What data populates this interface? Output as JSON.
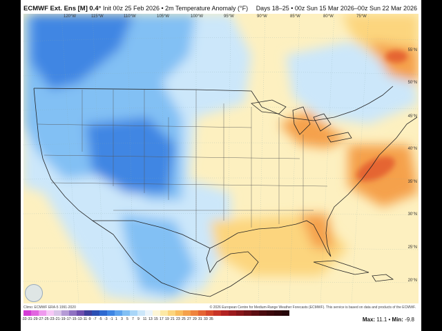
{
  "header": {
    "model": "ECMWF Ext. Ens [M]",
    "resolution": "0.4°",
    "init": "Init 00z 25 Feb 2026",
    "field": "2m Temperature Anomaly (°F)",
    "valid": "Days 18–25 • 00z Sun 15 Mar 2026–00z Sun 22 Mar 2026"
  },
  "map": {
    "region": "Continental United States",
    "lon_labels": [
      "120°W",
      "115°W",
      "110°W",
      "105°W",
      "100°W",
      "95°W",
      "90°W",
      "85°W",
      "80°W",
      "75°W"
    ],
    "lat_labels": [
      "55°N",
      "50°N",
      "45°N",
      "40°N",
      "35°N",
      "30°N",
      "25°N",
      "20°N"
    ]
  },
  "footer": {
    "climo": "Climo: ECMWF ERA-5 1991-2020",
    "copyright": "© 2026 European Centre for Medium-Range Weather Forecasts (ECMWF). This service is based on data and products of the ECMWF.",
    "max_label": "Max:",
    "max_value": "11.1",
    "min_label": "Min:",
    "min_value": "-9.8"
  },
  "colorbar": {
    "ticks": [
      "-33",
      "-31",
      "-29",
      "-27",
      "-25",
      "-23",
      "-21",
      "-19",
      "-17",
      "-15",
      "-13",
      "-11",
      "-9",
      "-7",
      "-5",
      "-3",
      "-1",
      "1",
      "3",
      "5",
      "7",
      "9",
      "11",
      "13",
      "15",
      "17",
      "19",
      "21",
      "23",
      "25",
      "27",
      "29",
      "31",
      "33",
      "35"
    ],
    "colors": [
      "#d43bd6",
      "#e266e0",
      "#ef99ee",
      "#f6c8f6",
      "#d9c4e8",
      "#b59bd6",
      "#8f72c2",
      "#6f4fae",
      "#3f3f9c",
      "#2b4fb3",
      "#2e6ad0",
      "#3f86e3",
      "#5ea4ee",
      "#82c0f4",
      "#a9d6f8",
      "#cce7fa",
      "#ebf4fb",
      "#fdf6d6",
      "#fde9a6",
      "#fcd57e",
      "#f9bd5e",
      "#f5a14b",
      "#ef843e",
      "#e56533",
      "#d84a2b",
      "#c73426",
      "#b22222",
      "#9c1b1e",
      "#86161a",
      "#701216",
      "#5c0e12",
      "#4a0b0f",
      "#3c090c",
      "#30070a",
      "#26060a"
    ]
  },
  "colors": {
    "cold_dark": "#3f86e3",
    "cold": "#82c0f4",
    "cool": "#cce7fa",
    "neutral": "#ebf4fb",
    "warm_light": "#fdf0c0",
    "warm": "#fcd57e",
    "warm_mid": "#f5a14b",
    "hot": "#e56533"
  }
}
